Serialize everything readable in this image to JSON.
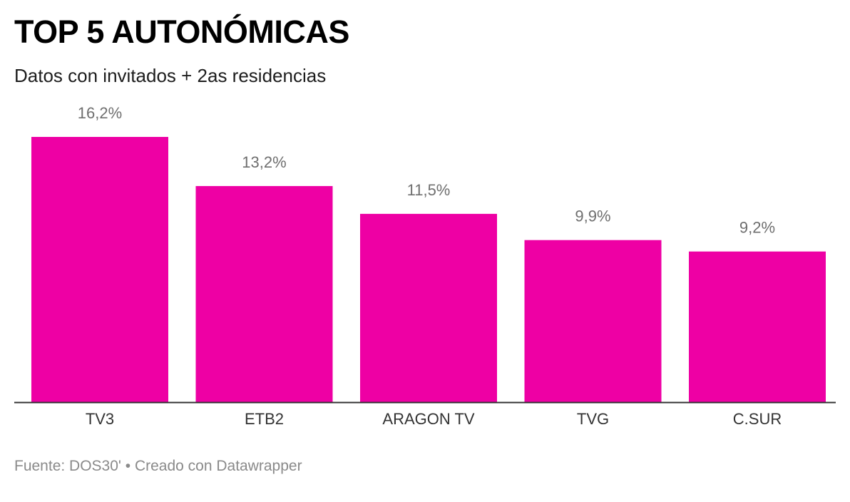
{
  "header": {
    "title": "TOP 5 AUTONÓMICAS",
    "subtitle": "Datos con invitados + 2as residencias"
  },
  "footer": {
    "text": "Fuente: DOS30' • Creado con Datawrapper"
  },
  "colors": {
    "bar": "#ee00a4",
    "baseline": "#333333"
  },
  "chart_data": {
    "type": "bar",
    "title": "TOP 5 AUTONÓMICAS",
    "subtitle": "Datos con invitados + 2as residencias",
    "categories": [
      "TV3",
      "ETB2",
      "ARAGON TV",
      "TVG",
      "C.SUR"
    ],
    "values": [
      16.2,
      13.2,
      11.5,
      9.9,
      9.2
    ],
    "value_labels": [
      "16,2%",
      "13,2%",
      "11,5%",
      "9,9%",
      "9,2%"
    ],
    "ylim": [
      0,
      16.2
    ],
    "xlabel": "",
    "ylabel": "",
    "grid": false,
    "legend": "none"
  }
}
